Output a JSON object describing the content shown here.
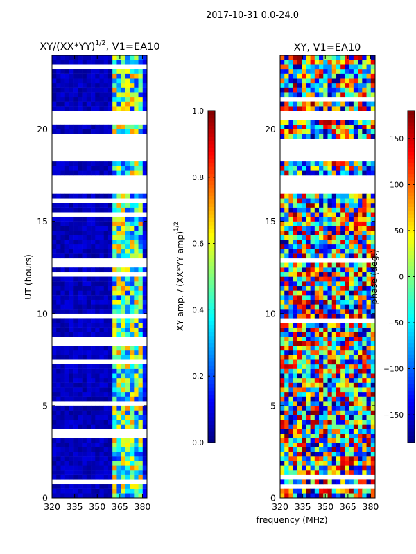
{
  "figure": {
    "suptitle": "2017-10-31 0.0-24.0"
  },
  "colors": {
    "jet": [
      "#00007f",
      "#0000ff",
      "#007fff",
      "#00ffff",
      "#7fff7f",
      "#ffff00",
      "#ff7f00",
      "#ff0000",
      "#7f0000"
    ],
    "background_masked": "#ffffff",
    "masked_band": "#ffffff"
  },
  "chart_data": [
    {
      "type": "heatmap",
      "id": "amplitude",
      "title_main": "XY/(XX*YY)",
      "title_exp": "1/2",
      "title_suffix": ", V1=EA10",
      "ylabel": "UT (hours)",
      "xlabel": "",
      "xlim": [
        320,
        383
      ],
      "ylim": [
        0,
        24
      ],
      "xticks": [
        320,
        335,
        350,
        365,
        380
      ],
      "yticks": [
        0,
        5,
        10,
        15,
        20
      ],
      "colorbar": {
        "label_main": "XY amp. / (XX*YY amp)",
        "label_exp": "1/2",
        "range": [
          0.0,
          1.0
        ],
        "ticks": [
          0.0,
          0.2,
          0.4,
          0.6,
          0.8,
          1.0
        ],
        "tick_labels": [
          "0.0",
          "0.2",
          "0.4",
          "0.6",
          "0.8",
          "1.0"
        ]
      },
      "masked_time_ranges_hours": [
        [
          16.5,
          17.6
        ],
        [
          18.3,
          19.5
        ],
        [
          20.6,
          21.0
        ]
      ],
      "low_value_freq_range_mhz": [
        320,
        360
      ],
      "active_freq_range_mhz": [
        360,
        380
      ]
    },
    {
      "type": "heatmap",
      "id": "phase",
      "title_main": "XY, V1=EA10",
      "ylabel": "",
      "xlabel": "frequency (MHz)",
      "xlim": [
        320,
        383
      ],
      "ylim": [
        0,
        24
      ],
      "xticks": [
        320,
        335,
        350,
        365,
        380
      ],
      "yticks": [
        0,
        5,
        10,
        15,
        20
      ],
      "colorbar": {
        "label_main": "phase (deg.)",
        "range": [
          -180,
          180
        ],
        "ticks": [
          -150,
          -100,
          -50,
          0,
          50,
          100,
          150
        ],
        "tick_labels": [
          "−150",
          "−100",
          "−50",
          "0",
          "50",
          "100",
          "150"
        ]
      },
      "masked_time_ranges_hours": [
        [
          16.5,
          17.6
        ],
        [
          18.3,
          19.5
        ],
        [
          20.6,
          21.0
        ]
      ]
    }
  ]
}
